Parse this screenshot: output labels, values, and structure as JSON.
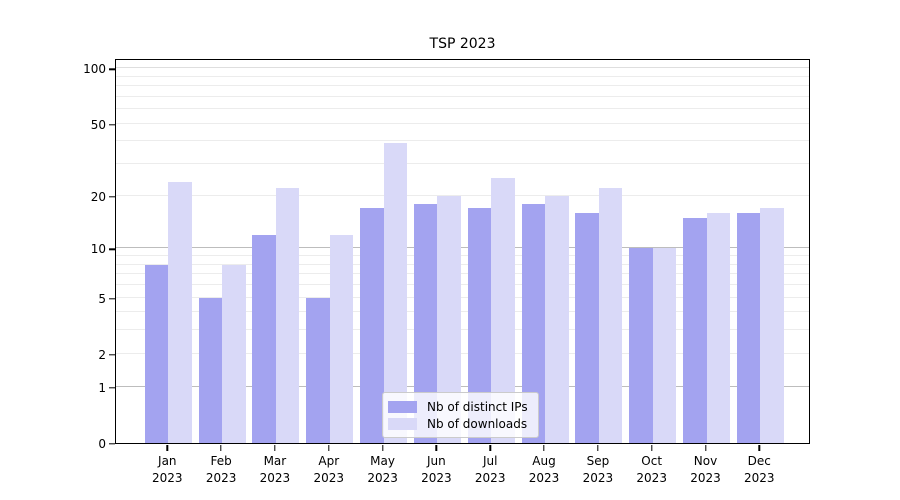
{
  "title": "TSP 2023",
  "chart_data": {
    "type": "bar",
    "title": "TSP 2023",
    "categories": [
      "Jan 2023",
      "Feb 2023",
      "Mar 2023",
      "Apr 2023",
      "May 2023",
      "Jun 2023",
      "Jul 2023",
      "Aug 2023",
      "Sep 2023",
      "Oct 2023",
      "Nov 2023",
      "Dec 2023"
    ],
    "months": [
      "Jan",
      "Feb",
      "Mar",
      "Apr",
      "May",
      "Jun",
      "Jul",
      "Aug",
      "Sep",
      "Oct",
      "Nov",
      "Dec"
    ],
    "year": "2023",
    "series": [
      {
        "name": "Nb of distinct IPs",
        "color": "#a3a3f0",
        "values": [
          8,
          5,
          12,
          5,
          17,
          18,
          17,
          18,
          16,
          10,
          15,
          16
        ]
      },
      {
        "name": "Nb of downloads",
        "color": "#d9d9f8",
        "values": [
          24,
          8,
          22,
          12,
          39,
          20,
          25,
          20,
          22,
          10,
          16,
          17
        ]
      }
    ],
    "xlabel": "",
    "ylabel": "",
    "y_axis": {
      "scale": "log1p",
      "ticks": [
        0,
        1,
        2,
        5,
        10,
        20,
        50,
        100
      ],
      "ylim": [
        0,
        113.5
      ],
      "major_gridlines": [
        1,
        10,
        100
      ],
      "minor_gridlines": [
        2,
        3,
        4,
        5,
        6,
        7,
        8,
        9,
        20,
        30,
        40,
        50,
        60,
        70,
        80,
        90
      ]
    },
    "grid": true,
    "legend_position": "lower center"
  },
  "colors": {
    "background": "#ffffff",
    "axis": "#000000",
    "bar_distinct_ips": "#a3a3f0",
    "bar_downloads": "#d9d9f8",
    "gridline_minor": "#ececec",
    "gridline_major": "#bdbdbd",
    "legend_border": "#cbcbcb"
  }
}
